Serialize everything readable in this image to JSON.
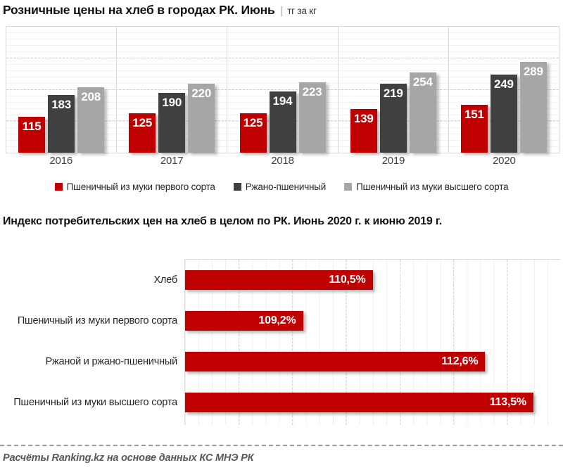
{
  "chart_data": [
    {
      "type": "bar",
      "title": "Розничные цены на хлеб в городах РК. Июнь",
      "separator": "|",
      "unit": "тг за кг",
      "categories": [
        "2016",
        "2017",
        "2018",
        "2019",
        "2020"
      ],
      "series": [
        {
          "name": "Пшеничный из муки первого сорта",
          "color": "#c00000",
          "values": [
            115,
            125,
            125,
            139,
            151
          ]
        },
        {
          "name": "Ржано-пшеничный",
          "color": "#404040",
          "values": [
            183,
            190,
            194,
            219,
            249
          ]
        },
        {
          "name": "Пшеничный из муки высшего сорта",
          "color": "#a6a6a6",
          "values": [
            208,
            220,
            223,
            254,
            289
          ]
        }
      ],
      "ylim": [
        0,
        400
      ],
      "gridlines": {
        "major_step": 100,
        "minor_step": 20,
        "major_values": [
          100,
          200,
          300
        ]
      },
      "legend_position": "bottom",
      "value_labels": "inside-top-white"
    },
    {
      "type": "bar-horizontal",
      "title": "Индекс потребительских цен на хлеб в целом по РК. Июнь 2020 г. к июню 2019 г.",
      "categories": [
        "Хлеб",
        "Пшеничный из муки первого сорта",
        "Ржаной и ржано-пшеничный",
        "Пшеничный из муки высшего сорта"
      ],
      "values": [
        110.5,
        109.2,
        112.6,
        113.5
      ],
      "value_labels": [
        "110,5%",
        "109,2%",
        "112,6%",
        "113,5%"
      ],
      "bar_color": "#c00000",
      "xlim": [
        107,
        114
      ],
      "gridlines": {
        "major_step": 1,
        "minor_step": 0.25
      },
      "value_label_position": "inside-end-white"
    }
  ],
  "footer": {
    "text": "Расчёты Ranking.kz на основе данных КС МНЭ РК"
  }
}
